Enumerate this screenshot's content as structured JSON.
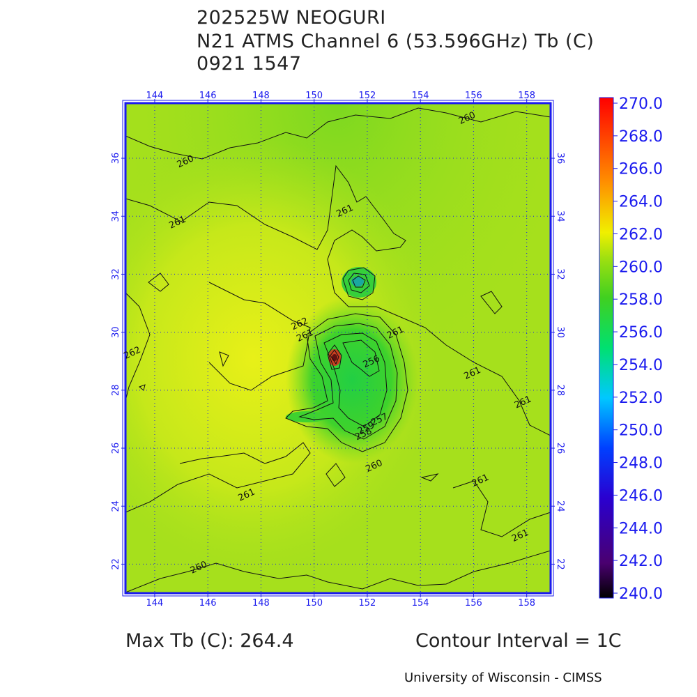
{
  "header": {
    "storm_line": "202525W NEOGURI",
    "product_line": "N21 ATMS Channel 6 (53.596GHz) Tb (C)",
    "time_line": "0921 1547"
  },
  "footer": {
    "max_tb": "Max Tb (C): 264.4",
    "contour_interval": "Contour Interval = 1C",
    "credit": "University of Wisconsin - CIMSS"
  },
  "colors": {
    "axis": "#1a1aee",
    "grid": "#1a1aee",
    "contour": "#111111",
    "background_field": "#a6e01c"
  },
  "chart_data": {
    "type": "heatmap",
    "x_ticks": [
      "144",
      "146",
      "148",
      "150",
      "152",
      "154",
      "156",
      "158"
    ],
    "y_ticks": [
      "22",
      "24",
      "26",
      "28",
      "30",
      "32",
      "34",
      "36"
    ],
    "x_range": [
      142.9,
      158.9
    ],
    "y_range": [
      21.0,
      37.9
    ],
    "x_tick_values": [
      144,
      146,
      148,
      150,
      152,
      154,
      156,
      158
    ],
    "y_tick_values": [
      22,
      24,
      26,
      28,
      30,
      32,
      34,
      36
    ],
    "colorbar": {
      "range": [
        240.0,
        270.0
      ],
      "labels": [
        "270.0",
        "268.0",
        "266.0",
        "264.0",
        "262.0",
        "260.0",
        "258.0",
        "256.0",
        "254.0",
        "252.0",
        "250.0",
        "248.0",
        "246.0",
        "244.0",
        "242.0",
        "240.0"
      ],
      "values": [
        270,
        268,
        266,
        264,
        262,
        260,
        258,
        256,
        254,
        252,
        250,
        248,
        246,
        244,
        242,
        240
      ]
    },
    "contour_labels": [
      {
        "text": "260",
        "x": 145.2,
        "y": 35.8
      },
      {
        "text": "261",
        "x": 144.9,
        "y": 33.7
      },
      {
        "text": "261",
        "x": 151.2,
        "y": 34.1
      },
      {
        "text": "260",
        "x": 155.8,
        "y": 37.3
      },
      {
        "text": "262",
        "x": 149.5,
        "y": 30.2
      },
      {
        "text": "261",
        "x": 149.7,
        "y": 29.8
      },
      {
        "text": "262",
        "x": 143.2,
        "y": 29.2
      },
      {
        "text": "256",
        "x": 152.2,
        "y": 28.9
      },
      {
        "text": "261",
        "x": 153.1,
        "y": 29.9
      },
      {
        "text": "261",
        "x": 156.0,
        "y": 28.5
      },
      {
        "text": "261",
        "x": 157.9,
        "y": 27.5
      },
      {
        "text": "257",
        "x": 152.5,
        "y": 26.9
      },
      {
        "text": "259",
        "x": 152.0,
        "y": 26.6
      },
      {
        "text": "258",
        "x": 151.9,
        "y": 26.4
      },
      {
        "text": "260",
        "x": 152.3,
        "y": 25.3
      },
      {
        "text": "261",
        "x": 156.3,
        "y": 24.8
      },
      {
        "text": "261",
        "x": 147.5,
        "y": 24.3
      },
      {
        "text": "261",
        "x": 157.8,
        "y": 22.9
      },
      {
        "text": "260",
        "x": 145.7,
        "y": 21.8
      }
    ]
  }
}
